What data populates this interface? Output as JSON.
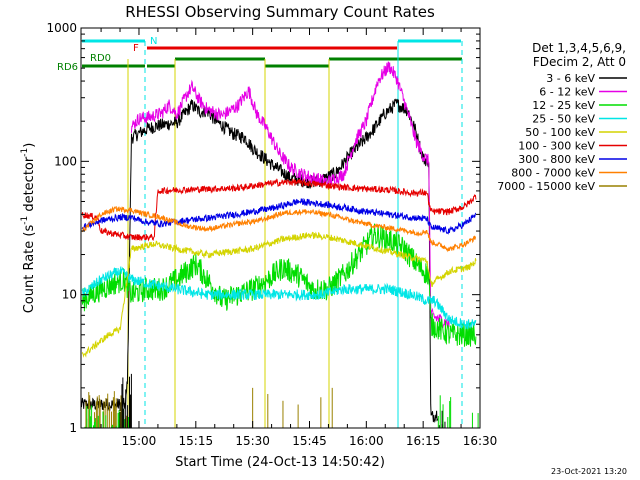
{
  "chart_data": {
    "type": "line",
    "title": "RHESSI Observing Summary Count Rates",
    "xlabel": "Start Time (24-Oct-13 14:50:42)",
    "ylabel_main": "Count Rate (s",
    "ylabel_sup1": "-1",
    "ylabel_mid": " detector",
    "ylabel_sup2": "-1",
    "ylabel_end": ")",
    "yscale": "log",
    "ylim": [
      1,
      1000
    ],
    "xlim_minutes_from_1450": [
      -5.3,
      100
    ],
    "x_ticks": [
      {
        "label": "15:00",
        "m": 10
      },
      {
        "label": "15:15",
        "m": 25
      },
      {
        "label": "15:30",
        "m": 40
      },
      {
        "label": "15:45",
        "m": 55
      },
      {
        "label": "16:00",
        "m": 70
      },
      {
        "label": "16:15",
        "m": 85
      },
      {
        "label": "16:30",
        "m": 100
      }
    ],
    "y_ticks": [
      {
        "label": "1",
        "v": 1
      },
      {
        "label": "10",
        "v": 10
      },
      {
        "label": "100",
        "v": 100
      },
      {
        "label": "1000",
        "v": 1000
      }
    ],
    "legend": {
      "header": [
        "Det 1,3,4,5,6,9,",
        "FDecim 2, Att 0"
      ],
      "entries": [
        {
          "label": "3 - 6 keV",
          "color": "#000000"
        },
        {
          "label": "6 - 12 keV",
          "color": "#e600e6"
        },
        {
          "label": "12 - 25 keV",
          "color": "#00dd00"
        },
        {
          "label": "25 - 50 keV",
          "color": "#00e6e6"
        },
        {
          "label": "50 - 100 keV",
          "color": "#d4d400"
        },
        {
          "label": "100 - 300 keV",
          "color": "#e60000"
        },
        {
          "label": "300 - 800 keV",
          "color": "#0000e6"
        },
        {
          "label": "800 - 7000 keV",
          "color": "#ff8000"
        },
        {
          "label": "7000 - 15000 keV",
          "color": "#998000"
        }
      ]
    },
    "flags": {
      "rd6_label": "RD6",
      "rd0_label": "RD0",
      "f_label": "F",
      "n_label": "N"
    },
    "series": [
      {
        "name": "3 - 6 keV",
        "color": "#000000",
        "noise": 0.1,
        "points": [
          [
            -5.3,
            1.5
          ],
          [
            6.5,
            1.5
          ],
          [
            7,
            2.5
          ],
          [
            8,
            150
          ],
          [
            12,
            175
          ],
          [
            15,
            185
          ],
          [
            20,
            195
          ],
          [
            24,
            265
          ],
          [
            26,
            235
          ],
          [
            28,
            240
          ],
          [
            30,
            205
          ],
          [
            32,
            185
          ],
          [
            35,
            160
          ],
          [
            38,
            150
          ],
          [
            40,
            125
          ],
          [
            45,
            95
          ],
          [
            50,
            75
          ],
          [
            55,
            70
          ],
          [
            58,
            72
          ],
          [
            62,
            82
          ],
          [
            66,
            115
          ],
          [
            69,
            140
          ],
          [
            72,
            175
          ],
          [
            75,
            230
          ],
          [
            78,
            270
          ],
          [
            81,
            240
          ],
          [
            83,
            170
          ],
          [
            85,
            105
          ],
          [
            86.5,
            100
          ],
          [
            87,
            1.2
          ],
          [
            89,
            1.3
          ]
        ]
      },
      {
        "name": "6 - 12 keV",
        "color": "#e600e6",
        "noise": 0.1,
        "points": [
          [
            8,
            180
          ],
          [
            10,
            210
          ],
          [
            13,
            215
          ],
          [
            16,
            230
          ],
          [
            18,
            265
          ],
          [
            20,
            225
          ],
          [
            23,
            330
          ],
          [
            24,
            360
          ],
          [
            26,
            285
          ],
          [
            28,
            245
          ],
          [
            32,
            220
          ],
          [
            36,
            260
          ],
          [
            39,
            340
          ],
          [
            41,
            230
          ],
          [
            44,
            170
          ],
          [
            47,
            115
          ],
          [
            50,
            90
          ],
          [
            53,
            80
          ],
          [
            56,
            75
          ],
          [
            60,
            70
          ],
          [
            64,
            80
          ],
          [
            67,
            140
          ],
          [
            70,
            200
          ],
          [
            73,
            400
          ],
          [
            76,
            520
          ],
          [
            78,
            420
          ],
          [
            81,
            230
          ],
          [
            83,
            145
          ],
          [
            85,
            110
          ],
          [
            86.5,
            100
          ],
          [
            87,
            7
          ],
          [
            92,
            6
          ]
        ]
      },
      {
        "name": "12 - 25 keV",
        "color": "#00dd00",
        "noise": 0.18,
        "points": [
          [
            -5,
            9
          ],
          [
            0,
            11
          ],
          [
            6,
            13
          ],
          [
            8,
            10
          ],
          [
            12,
            11
          ],
          [
            16,
            11
          ],
          [
            20,
            13
          ],
          [
            25,
            17
          ],
          [
            28,
            13
          ],
          [
            32,
            9
          ],
          [
            36,
            10
          ],
          [
            40,
            11
          ],
          [
            44,
            13
          ],
          [
            48,
            16
          ],
          [
            52,
            14
          ],
          [
            56,
            11
          ],
          [
            60,
            11
          ],
          [
            64,
            14
          ],
          [
            68,
            20
          ],
          [
            72,
            28
          ],
          [
            76,
            26
          ],
          [
            80,
            22
          ],
          [
            84,
            16
          ],
          [
            86.5,
            14
          ],
          [
            87,
            6
          ],
          [
            92,
            5
          ],
          [
            97,
            5
          ],
          [
            99,
            5
          ]
        ]
      },
      {
        "name": "25 - 50 keV",
        "color": "#00e6e6",
        "noise": 0.08,
        "points": [
          [
            -5,
            10
          ],
          [
            0,
            13
          ],
          [
            5,
            15
          ],
          [
            8,
            13
          ],
          [
            13,
            12
          ],
          [
            20,
            11
          ],
          [
            28,
            10
          ],
          [
            36,
            10
          ],
          [
            44,
            10
          ],
          [
            52,
            10
          ],
          [
            58,
            10
          ],
          [
            64,
            11
          ],
          [
            70,
            11
          ],
          [
            76,
            11
          ],
          [
            82,
            10
          ],
          [
            86,
            9
          ],
          [
            88,
            9
          ],
          [
            92,
            6.5
          ],
          [
            96,
            6
          ],
          [
            99,
            6
          ]
        ]
      },
      {
        "name": "50 - 100 keV",
        "color": "#d4d400",
        "noise": 0.05,
        "points": [
          [
            -5,
            3.5
          ],
          [
            0,
            4.5
          ],
          [
            2,
            5
          ],
          [
            5,
            5.5
          ],
          [
            8,
            22
          ],
          [
            14,
            24
          ],
          [
            20,
            22
          ],
          [
            28,
            20
          ],
          [
            34,
            21
          ],
          [
            40,
            22
          ],
          [
            48,
            26
          ],
          [
            55,
            28
          ],
          [
            60,
            27
          ],
          [
            68,
            24
          ],
          [
            76,
            21
          ],
          [
            82,
            19
          ],
          [
            86,
            18
          ],
          [
            87,
            12
          ],
          [
            92,
            15
          ],
          [
            97,
            16
          ],
          [
            99,
            18
          ]
        ]
      },
      {
        "name": "100 - 300 keV",
        "color": "#e60000",
        "noise": 0.05,
        "points": [
          [
            -5,
            40
          ],
          [
            -1,
            38
          ],
          [
            0,
            30
          ],
          [
            5,
            28
          ],
          [
            8,
            27
          ],
          [
            10,
            27
          ],
          [
            14,
            27
          ],
          [
            15,
            60
          ],
          [
            20,
            61
          ],
          [
            28,
            62
          ],
          [
            36,
            63
          ],
          [
            44,
            68
          ],
          [
            50,
            70
          ],
          [
            56,
            68
          ],
          [
            60,
            66
          ],
          [
            64,
            64
          ],
          [
            70,
            62
          ],
          [
            76,
            61
          ],
          [
            82,
            58
          ],
          [
            86,
            58
          ],
          [
            87,
            42
          ],
          [
            92,
            42
          ],
          [
            96,
            46
          ],
          [
            99,
            55
          ]
        ]
      },
      {
        "name": "300 - 800 keV",
        "color": "#0000e6",
        "noise": 0.05,
        "points": [
          [
            -5,
            32
          ],
          [
            0,
            36
          ],
          [
            5,
            38
          ],
          [
            8,
            38
          ],
          [
            12,
            35
          ],
          [
            16,
            34
          ],
          [
            22,
            36
          ],
          [
            30,
            38
          ],
          [
            38,
            41
          ],
          [
            46,
            45
          ],
          [
            52,
            50
          ],
          [
            58,
            48
          ],
          [
            64,
            45
          ],
          [
            70,
            42
          ],
          [
            76,
            40
          ],
          [
            82,
            38
          ],
          [
            86,
            37
          ],
          [
            87,
            32
          ],
          [
            92,
            30
          ],
          [
            96,
            34
          ],
          [
            99,
            40
          ]
        ]
      },
      {
        "name": "800 - 7000 keV",
        "color": "#ff8000",
        "noise": 0.04,
        "points": [
          [
            -5,
            30
          ],
          [
            0,
            40
          ],
          [
            4,
            44
          ],
          [
            8,
            43
          ],
          [
            12,
            40
          ],
          [
            16,
            38
          ],
          [
            22,
            33
          ],
          [
            28,
            31
          ],
          [
            36,
            34
          ],
          [
            42,
            36
          ],
          [
            48,
            41
          ],
          [
            54,
            42
          ],
          [
            60,
            40
          ],
          [
            66,
            36
          ],
          [
            72,
            33
          ],
          [
            78,
            31
          ],
          [
            84,
            29
          ],
          [
            86,
            30
          ],
          [
            87,
            25
          ],
          [
            92,
            22
          ],
          [
            96,
            24
          ],
          [
            99,
            27
          ]
        ]
      }
    ]
  }
}
